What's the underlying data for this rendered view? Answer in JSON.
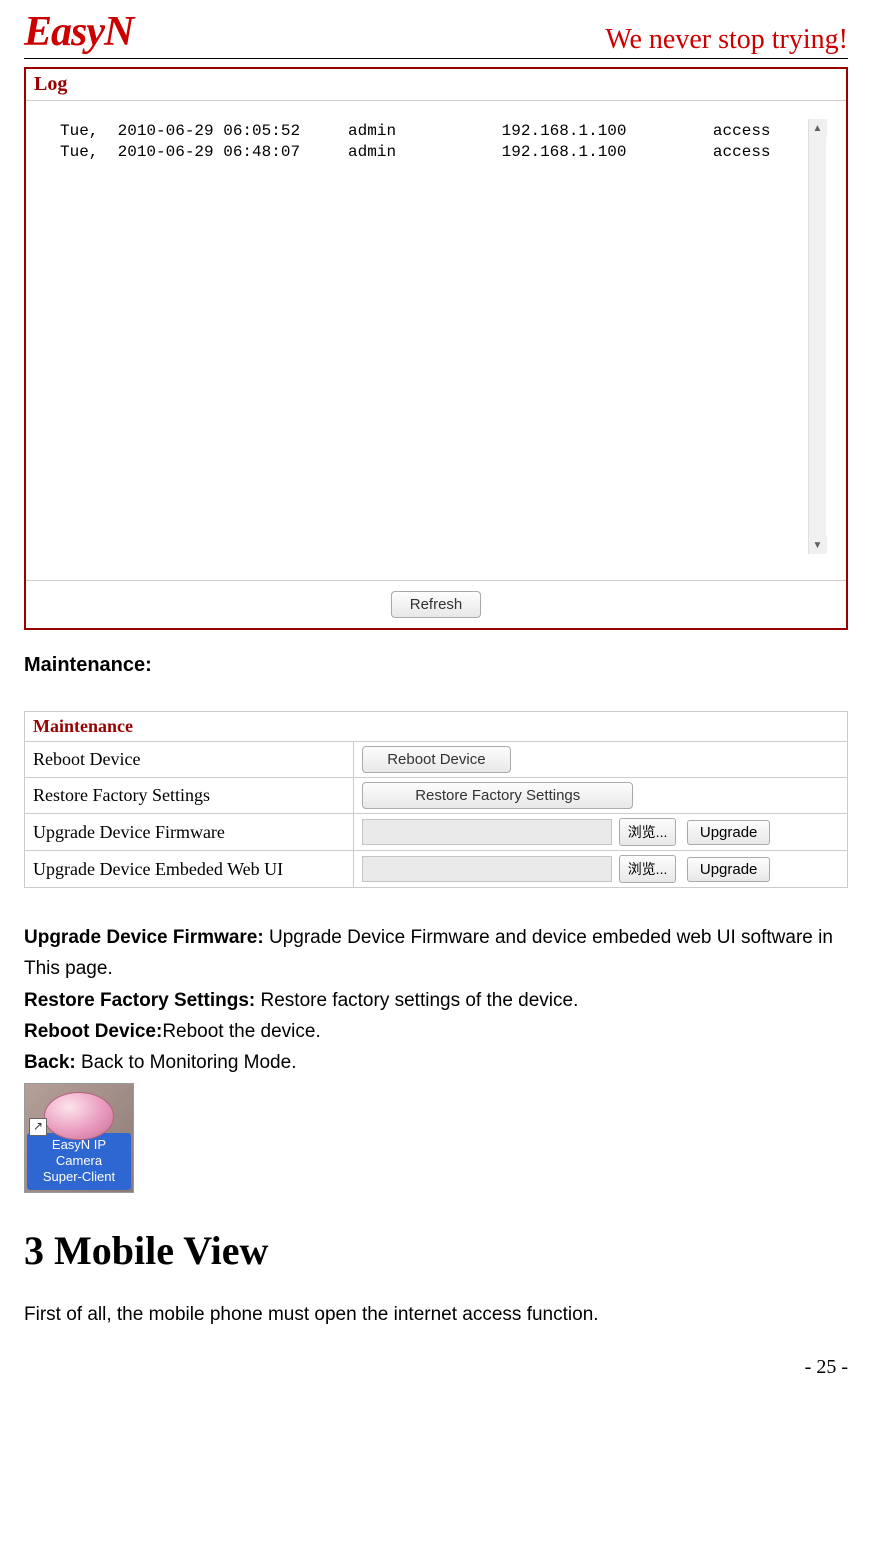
{
  "header": {
    "logo": "EasyN",
    "tagline": "We never stop trying!"
  },
  "log_panel": {
    "title": "Log",
    "rows": [
      {
        "ts": "Tue,  2010-06-29 06:05:52",
        "user": "admin",
        "ip": "192.168.1.100",
        "action": "access"
      },
      {
        "ts": "Tue,  2010-06-29 06:48:07",
        "user": "admin",
        "ip": "192.168.1.100",
        "action": "access"
      }
    ],
    "refresh_label": "Refresh"
  },
  "maintenance_heading": "Maintenance:",
  "maintenance_panel": {
    "title": "Maintenance",
    "rows": {
      "reboot_label": "Reboot Device",
      "reboot_button": "Reboot Device",
      "restore_label": "Restore Factory Settings",
      "restore_button": "Restore Factory Settings",
      "upgrade_fw_label": "Upgrade Device Firmware",
      "upgrade_ui_label": "Upgrade Device Embeded Web UI",
      "browse_label": "浏览...",
      "upgrade_button": "Upgrade"
    }
  },
  "descriptions": {
    "upgrade_fw_term": "Upgrade Device Firmware: ",
    "upgrade_fw_text": "Upgrade Device Firmware and device embeded web UI software in This page.",
    "restore_term": "Restore Factory Settings: ",
    "restore_text": "Restore factory settings of the device.",
    "reboot_term": "Reboot Device:",
    "reboot_text": "Reboot the device.",
    "back_term": "Back: ",
    "back_text": "Back to Monitoring Mode."
  },
  "app_icon": {
    "line1": "EasyN IP",
    "line2": "Camera",
    "line3": "Super-Client",
    "shortcut": "↗"
  },
  "chapter": {
    "title": "3 Mobile View",
    "intro": "First of all, the mobile phone must open the internet access function."
  },
  "page_number": "- 25 -"
}
